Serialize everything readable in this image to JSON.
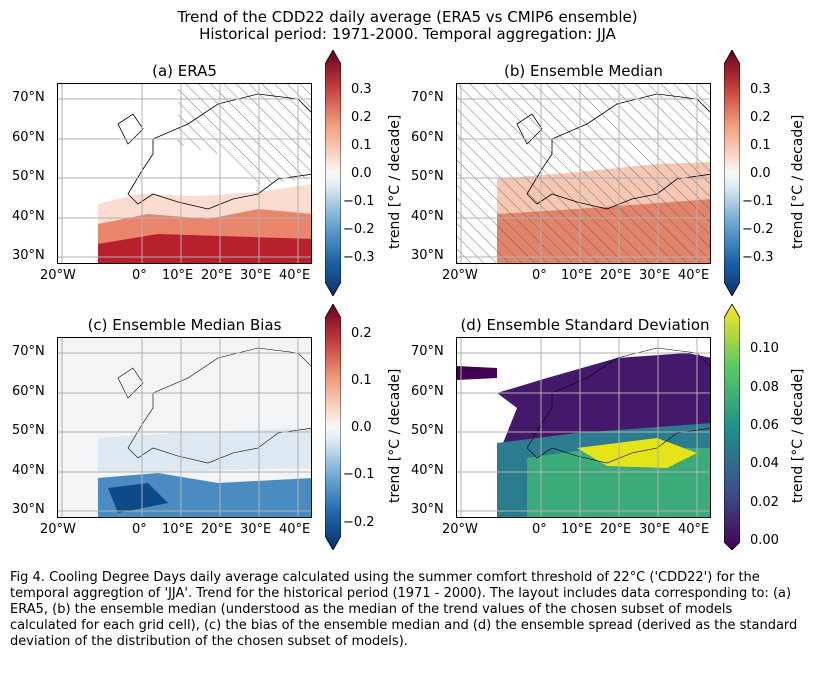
{
  "title_line1": "Trend of the CDD22 daily average (ERA5 vs CMIP6 ensemble)",
  "title_line2": "Historical period: 1971-2000. Temporal aggregation:  JJA",
  "lat_ticks": [
    "70°N",
    "60°N",
    "50°N",
    "40°N",
    "30°N"
  ],
  "lon_ticks": [
    "20°W",
    "0°",
    "10°E",
    "20°E",
    "30°E",
    "40°E"
  ],
  "panels": [
    {
      "title": "(a) ERA5",
      "colorbar": {
        "label": "trend [°C / decade]",
        "ticks": [
          "0.3",
          "0.2",
          "0.1",
          "0.0",
          "−0.1",
          "−0.2",
          "−0.3"
        ],
        "colormap": "RdBu_r"
      }
    },
    {
      "title": "(b) Ensemble Median",
      "colorbar": {
        "label": "trend [°C / decade]",
        "ticks": [
          "0.3",
          "0.2",
          "0.1",
          "0.0",
          "−0.1",
          "−0.2",
          "−0.3"
        ],
        "colormap": "RdBu_r"
      }
    },
    {
      "title": "(c) Ensemble Median Bias",
      "colorbar": {
        "label": "trend [°C / decade]",
        "ticks": [
          "0.2",
          "0.1",
          "0.0",
          "−0.1",
          "−0.2"
        ],
        "colormap": "RdBu_r"
      }
    },
    {
      "title": "(d) Ensemble Standard Deviation",
      "colorbar": {
        "label": "trend [°C / decade]",
        "ticks": [
          "0.10",
          "0.08",
          "0.06",
          "0.04",
          "0.02",
          "0.00"
        ],
        "colormap": "viridis"
      }
    }
  ],
  "caption": "Fig 4. Cooling Degree Days daily average calculated using the summer comfort threshold of 22°C ('CDD22') for the temporal aggregtion of 'JJA'. Trend for the historical period (1971 - 2000). The layout includes data corresponding to: (a) ERA5, (b) the ensemble median (understood as the median of the trend values of the chosen subset of models calculated for each grid cell), (c) the bias of the ensemble median and (d) the ensemble spread (derived as the standard deviation of the distribution of the chosen subset of models)."
}
